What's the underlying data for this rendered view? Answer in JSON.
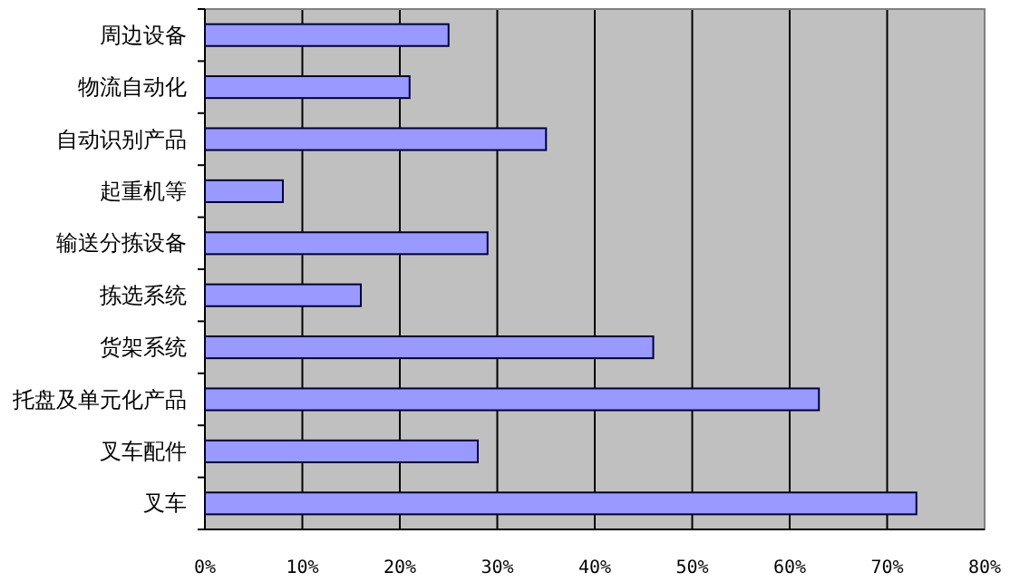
{
  "chart_data": {
    "type": "bar",
    "orientation": "horizontal",
    "categories": [
      "周边设备",
      "物流自动化",
      "自动识别产品",
      "起重机等",
      "输送分拣设备",
      "拣选系统",
      "货架系统",
      "托盘及单元化产品",
      "叉车配件",
      "叉车"
    ],
    "values": [
      25,
      21,
      35,
      8,
      29,
      16,
      46,
      63,
      28,
      73
    ],
    "color": "#9999ff",
    "xlim": [
      0,
      80
    ],
    "xticks": [
      {
        "value": 0,
        "label": "0%"
      },
      {
        "value": 10,
        "label": "10%"
      },
      {
        "value": 20,
        "label": "20%"
      },
      {
        "value": 30,
        "label": "30%"
      },
      {
        "value": 40,
        "label": "40%"
      },
      {
        "value": 50,
        "label": "50%"
      },
      {
        "value": 60,
        "label": "60%"
      },
      {
        "value": 70,
        "label": "70%"
      },
      {
        "value": 80,
        "label": "80%"
      }
    ],
    "grid": "x"
  }
}
